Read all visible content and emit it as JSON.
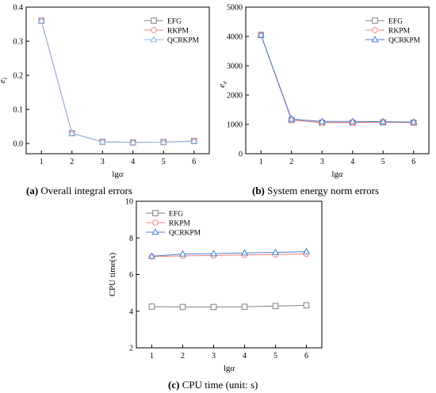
{
  "chart_data": [
    {
      "panel": "a",
      "type": "line",
      "caption_letter": "(a)",
      "caption_text": "Overall integral errors",
      "xlabel": "lgα",
      "ylabel": "e_i",
      "x": [
        1,
        2,
        3,
        4,
        5,
        6
      ],
      "xlim": [
        0.5,
        6.5
      ],
      "ylim": [
        -0.03,
        0.4
      ],
      "yticks": [
        0.0,
        0.1,
        0.2,
        0.3,
        0.4
      ],
      "ytick_labels": [
        "0.0",
        "0.1",
        "0.2",
        "0.3",
        "0.4"
      ],
      "legend": "top-right",
      "series": [
        {
          "name": "EFG",
          "marker": "square",
          "color": "#808080",
          "values": [
            0.36,
            0.03,
            0.005,
            0.003,
            0.004,
            0.007
          ]
        },
        {
          "name": "RKPM",
          "marker": "circle",
          "color": "#f08080",
          "values": [
            0.36,
            0.03,
            0.005,
            0.003,
            0.004,
            0.007
          ]
        },
        {
          "name": "QCRKPM",
          "marker": "triangle",
          "color": "#8db8e8",
          "values": [
            0.36,
            0.03,
            0.005,
            0.003,
            0.004,
            0.007
          ]
        }
      ]
    },
    {
      "panel": "b",
      "type": "line",
      "caption_letter": "(b)",
      "caption_text": "System energy norm errors",
      "xlabel": "lgα",
      "ylabel": "e_e",
      "x": [
        1,
        2,
        3,
        4,
        5,
        6
      ],
      "xlim": [
        0.5,
        6.5
      ],
      "ylim": [
        0,
        5000
      ],
      "yticks": [
        0,
        1000,
        2000,
        3000,
        4000,
        5000
      ],
      "ytick_labels": [
        "0",
        "1000",
        "2000",
        "3000",
        "4000",
        "5000"
      ],
      "legend": "top-right",
      "series": [
        {
          "name": "EFG",
          "marker": "square",
          "color": "#808080",
          "values": [
            4050,
            1150,
            1060,
            1060,
            1070,
            1060
          ]
        },
        {
          "name": "RKPM",
          "marker": "circle",
          "color": "#f08080",
          "values": [
            4050,
            1150,
            1060,
            1060,
            1070,
            1060
          ]
        },
        {
          "name": "QCRKPM",
          "marker": "triangle",
          "color": "#4a7fd0",
          "values": [
            4050,
            1180,
            1100,
            1100,
            1090,
            1080
          ]
        }
      ]
    },
    {
      "panel": "c",
      "type": "line",
      "caption_letter": "(c)",
      "caption_text": "CPU time (unit: s)",
      "xlabel": "lgα",
      "ylabel": "CPU time(s)",
      "x": [
        1,
        2,
        3,
        4,
        5,
        6
      ],
      "xlim": [
        0.5,
        6.5
      ],
      "ylim": [
        2,
        10
      ],
      "yticks": [
        2,
        4,
        6,
        8,
        10
      ],
      "ytick_labels": [
        "2",
        "4",
        "6",
        "8",
        "10"
      ],
      "legend": "top-left",
      "series": [
        {
          "name": "EFG",
          "marker": "square",
          "color": "#808080",
          "values": [
            4.25,
            4.23,
            4.23,
            4.24,
            4.28,
            4.32
          ]
        },
        {
          "name": "RKPM",
          "marker": "circle",
          "color": "#f08080",
          "values": [
            6.98,
            7.02,
            7.04,
            7.07,
            7.09,
            7.12
          ]
        },
        {
          "name": "QCRKPM",
          "marker": "triangle",
          "color": "#4a7fd0",
          "values": [
            7.0,
            7.12,
            7.14,
            7.18,
            7.21,
            7.25
          ]
        }
      ]
    }
  ]
}
